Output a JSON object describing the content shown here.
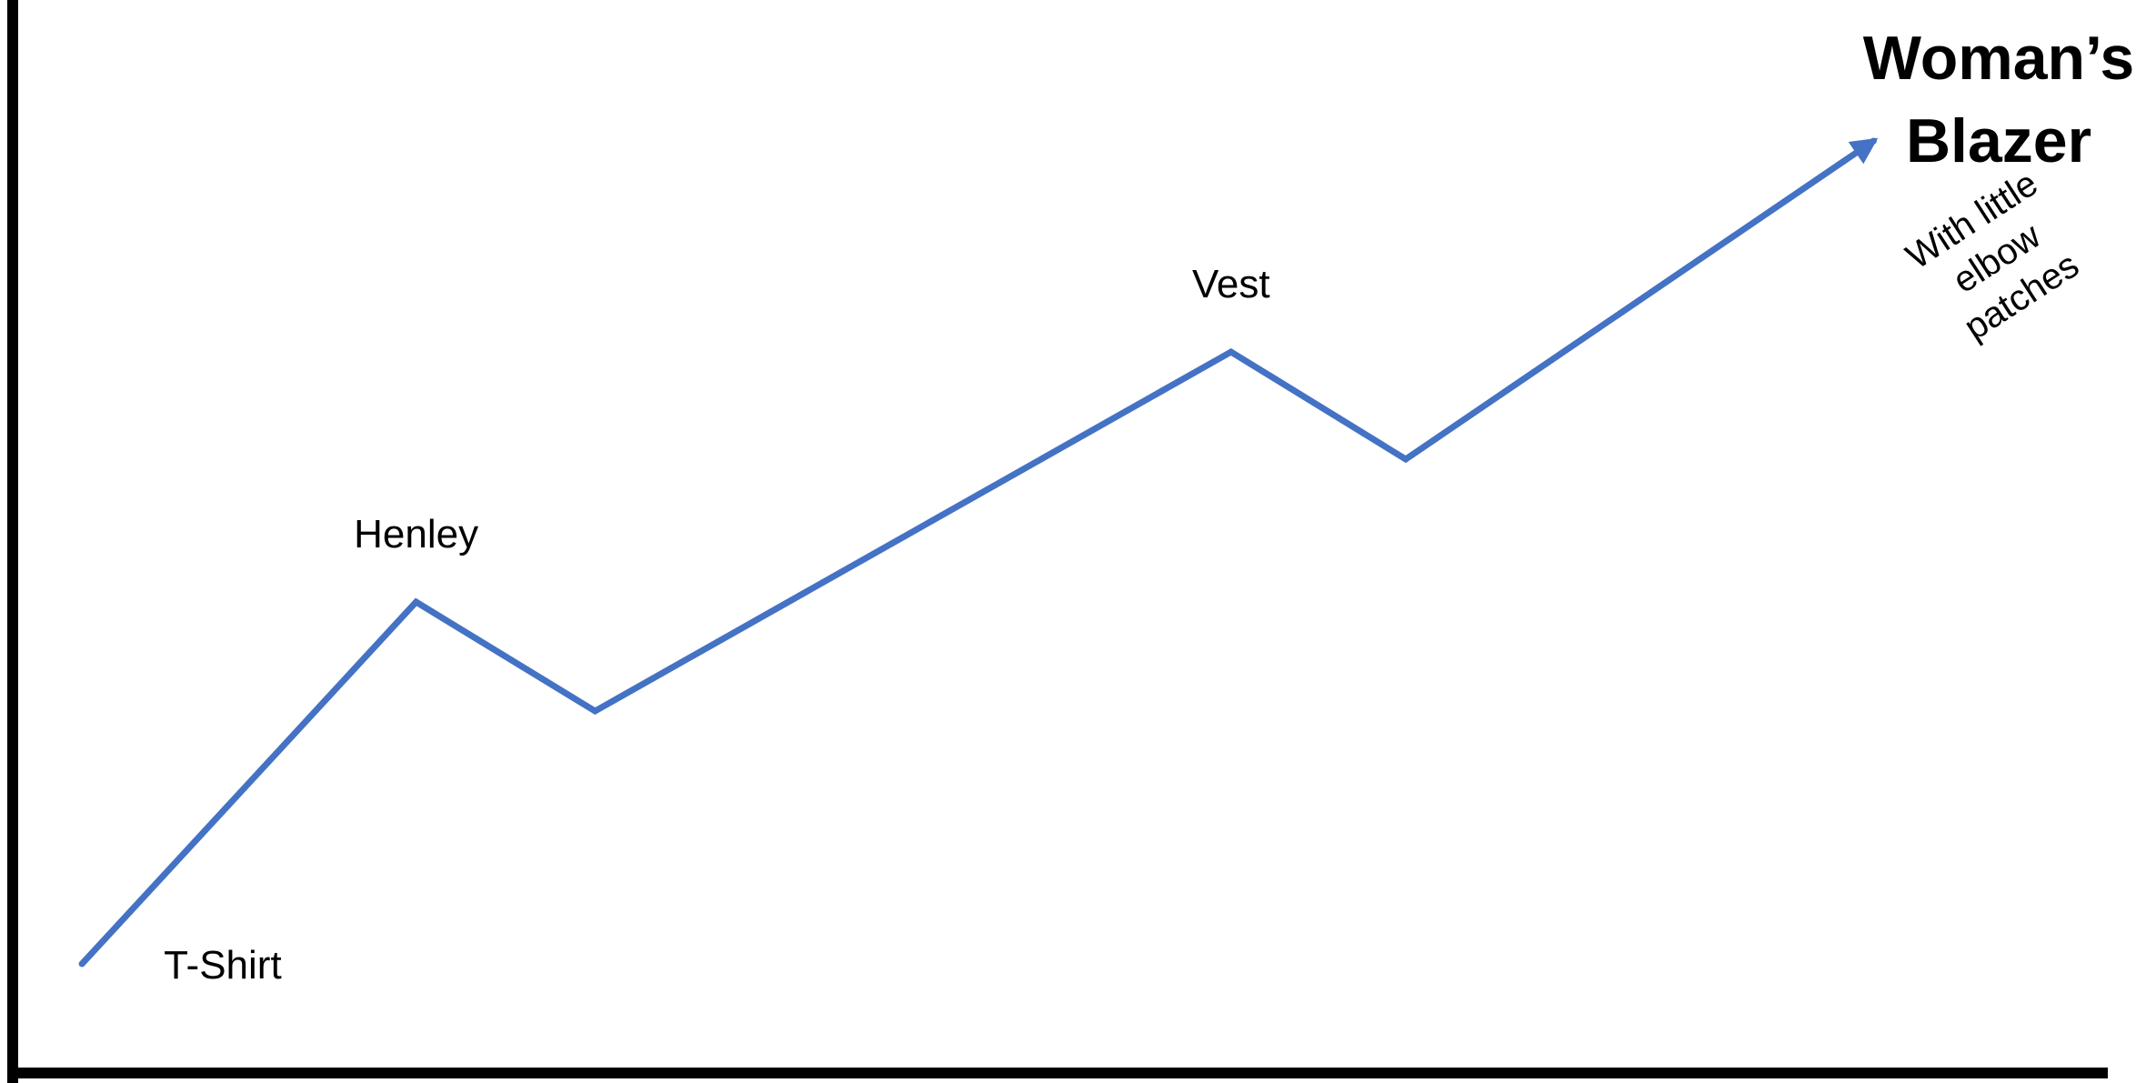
{
  "chart_data": {
    "type": "line",
    "title": "",
    "xlabel": "",
    "ylabel": "",
    "xlim": [
      0,
      100
    ],
    "ylim": [
      0,
      100
    ],
    "axis_ticks": false,
    "grid": false,
    "legend": "none",
    "series": [
      {
        "color": "#4472C4",
        "arrow_end": true,
        "points": [
          {
            "x": 3.8,
            "y": 6.0,
            "label": "T-Shirt"
          },
          {
            "x": 19.3,
            "y": 45.8,
            "label": "Henley"
          },
          {
            "x": 27.6,
            "y": 33.8
          },
          {
            "x": 57.1,
            "y": 73.3,
            "label": "Vest"
          },
          {
            "x": 65.2,
            "y": 61.5
          },
          {
            "x": 86.9,
            "y": 96.5
          }
        ]
      }
    ],
    "end_annotation": {
      "title_lines": [
        "Woman’s",
        "Blazer"
      ],
      "note_lines": [
        "With little",
        "elbow",
        "patches"
      ]
    },
    "axis_color": "#000000"
  }
}
